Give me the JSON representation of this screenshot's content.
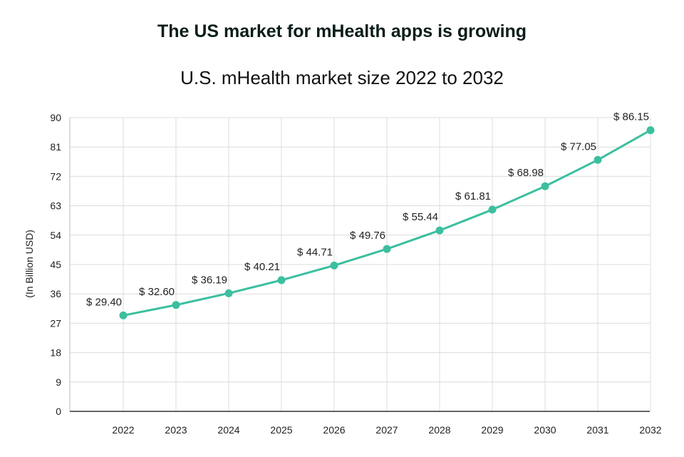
{
  "header": {
    "title": "The US market for mHealth apps is growing",
    "subtitle": "U.S. mHealth market size 2022 to 2032"
  },
  "chart_data": {
    "type": "line",
    "title": "U.S. mHealth market size 2022 to 2032",
    "xlabel": "",
    "ylabel": "(In Billion USD)",
    "ylim": [
      0,
      90
    ],
    "yticks": [
      0,
      9,
      18,
      27,
      36,
      45,
      54,
      63,
      72,
      81,
      90
    ],
    "categories": [
      "2022",
      "2023",
      "2024",
      "2025",
      "2026",
      "2027",
      "2028",
      "2029",
      "2030",
      "2031",
      "2032"
    ],
    "series": [
      {
        "values": [
          29.4,
          32.6,
          36.19,
          40.21,
          44.71,
          49.76,
          55.44,
          61.81,
          68.98,
          77.05,
          86.15
        ],
        "labels": [
          "$ 29.40",
          "$ 32.60",
          "$ 36.19",
          "$ 40.21",
          "$ 44.71",
          "$ 49.76",
          "$ 55.44",
          "$ 61.81",
          "$ 68.98",
          "$ 77.05",
          "$ 86.15"
        ],
        "color": "#3bbf9f"
      }
    ],
    "grid": true,
    "legend": "none"
  }
}
